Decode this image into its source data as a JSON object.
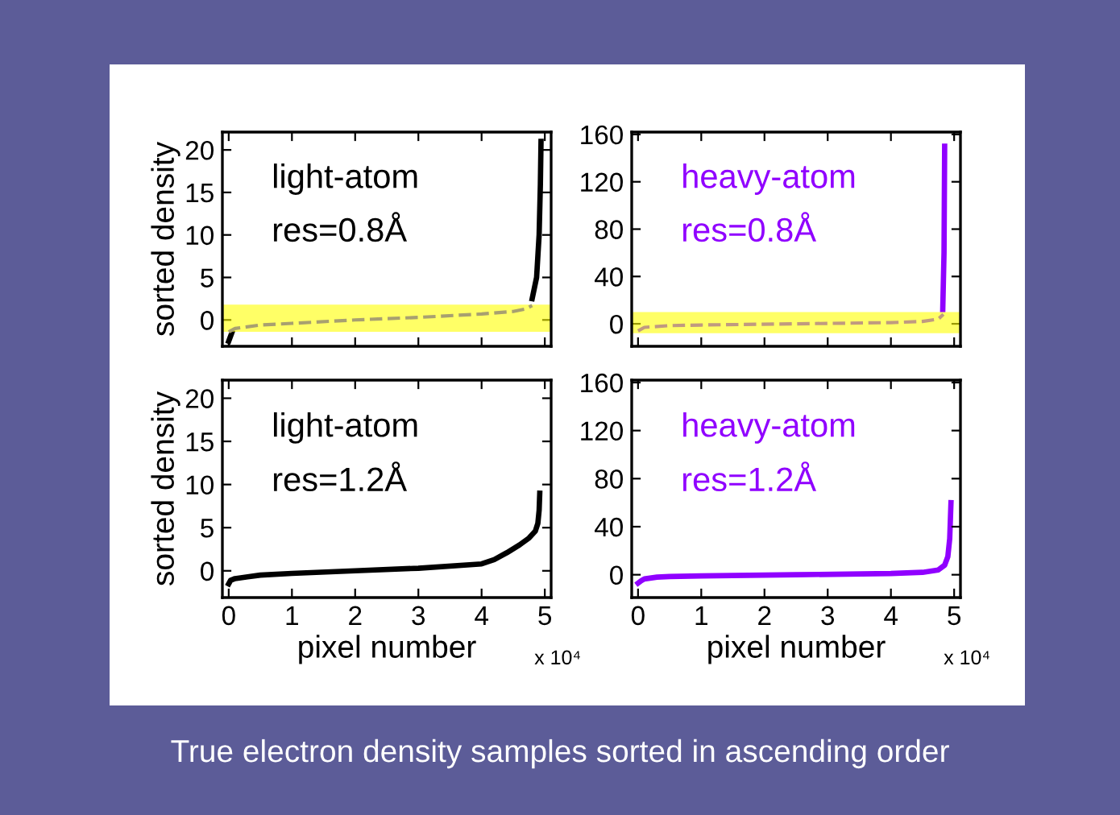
{
  "chart_data": [
    {
      "type": "line",
      "ylabel": "sorted density",
      "xlim": [
        -0.1,
        5.1
      ],
      "ylim": [
        -3.1,
        22.1
      ],
      "xticks": [
        {
          "value": 0,
          "label": null
        },
        {
          "value": 1,
          "label": null
        },
        {
          "value": 2,
          "label": null
        },
        {
          "value": 3,
          "label": null
        },
        {
          "value": 4,
          "label": null
        },
        {
          "value": 5,
          "label": null
        }
      ],
      "yticks": [
        0,
        5,
        10,
        15,
        20
      ],
      "tick_labels": "y",
      "bands": [
        {
          "axis": "y",
          "from": -1.4,
          "to": 1.8,
          "color": "#ffff00"
        }
      ],
      "series": [
        {
          "color": "#a8a070",
          "line_style": "dashed",
          "x": [
            0,
            0.1,
            0.5,
            1,
            2,
            3,
            4,
            4.5,
            4.7,
            4.8
          ],
          "values": [
            -1.4,
            -1.0,
            -0.6,
            -0.4,
            0,
            0.3,
            0.7,
            1.0,
            1.3,
            1.7
          ]
        },
        {
          "color": "#000000",
          "line_style": "solid",
          "x": [
            0,
            0.05,
            0.1,
            0.5,
            1,
            2,
            3,
            4,
            4.4,
            4.7,
            4.8,
            4.87,
            4.91,
            4.93,
            4.94
          ],
          "values": [
            -2.5,
            -1.5,
            null,
            null,
            null,
            null,
            null,
            null,
            null,
            null,
            2.5,
            5,
            10,
            16,
            21
          ]
        }
      ],
      "annotations": [
        "light-atom",
        "res=0.8Å"
      ]
    },
    {
      "type": "line",
      "xlim": [
        -0.1,
        5.1
      ],
      "ylim": [
        -19,
        162
      ],
      "xticks": [
        {
          "value": 0,
          "label": null
        },
        {
          "value": 1,
          "label": null
        },
        {
          "value": 2,
          "label": null
        },
        {
          "value": 3,
          "label": null
        },
        {
          "value": 4,
          "label": null
        },
        {
          "value": 5,
          "label": null
        }
      ],
      "yticks": [
        0,
        40,
        80,
        120,
        160
      ],
      "tick_labels": "y",
      "bands": [
        {
          "axis": "y",
          "from": -8,
          "to": 10,
          "color": "#ffff00"
        }
      ],
      "series": [
        {
          "color": "#c09a80",
          "line_style": "dashed",
          "x": [
            0,
            0.1,
            0.5,
            1,
            2.5,
            4,
            4.5,
            4.75,
            4.83
          ],
          "values": [
            -6,
            -3,
            -1.5,
            -1,
            0,
            1,
            2,
            4,
            8
          ]
        },
        {
          "color": "#9000ff",
          "line_style": "solid",
          "x": [
            4.82,
            4.84,
            4.85
          ],
          "values": [
            12,
            60,
            150
          ]
        }
      ],
      "annotations": [
        "heavy-atom",
        "res=0.8Å"
      ]
    },
    {
      "type": "line",
      "ylabel": "sorted density",
      "xlabel": "pixel number",
      "xlim": [
        -0.1,
        5.1
      ],
      "ylim": [
        -3.1,
        22.1
      ],
      "xticks": [
        0,
        1,
        2,
        3,
        4,
        5
      ],
      "yticks": [
        0,
        5,
        10,
        15,
        20
      ],
      "series": [
        {
          "color": "#000000",
          "line_style": "solid",
          "x": [
            0,
            0.03,
            0.1,
            0.3,
            0.5,
            1,
            2,
            3,
            4,
            4.2,
            4.4,
            4.6,
            4.75,
            4.85,
            4.89,
            4.91,
            4.92
          ],
          "values": [
            -1.5,
            -1.1,
            -0.9,
            -0.7,
            -0.5,
            -0.3,
            0,
            0.3,
            0.8,
            1.3,
            2.1,
            3.0,
            3.8,
            4.6,
            5.5,
            7,
            9
          ]
        }
      ],
      "annotations": [
        "light-atom",
        "res=1.2Å",
        "x 10⁴"
      ]
    },
    {
      "type": "line",
      "xlabel": "pixel number",
      "xlim": [
        -0.1,
        5.1
      ],
      "ylim": [
        -19,
        162
      ],
      "xticks": [
        0,
        1,
        2,
        3,
        4,
        5
      ],
      "yticks": [
        0,
        40,
        80,
        120,
        160
      ],
      "series": [
        {
          "color": "#9000ff",
          "line_style": "solid",
          "x": [
            0,
            0.05,
            0.1,
            0.3,
            0.5,
            1,
            2.5,
            4,
            4.5,
            4.75,
            4.85,
            4.9,
            4.93,
            4.95
          ],
          "values": [
            -7,
            -5,
            -3.5,
            -2,
            -1.5,
            -1,
            0,
            1,
            2,
            4,
            8,
            15,
            30,
            60
          ]
        }
      ],
      "annotations": [
        "heavy-atom",
        "res=1.2Å",
        "x 10⁴",
        "True electron density samples sorted in ascending order"
      ]
    }
  ]
}
